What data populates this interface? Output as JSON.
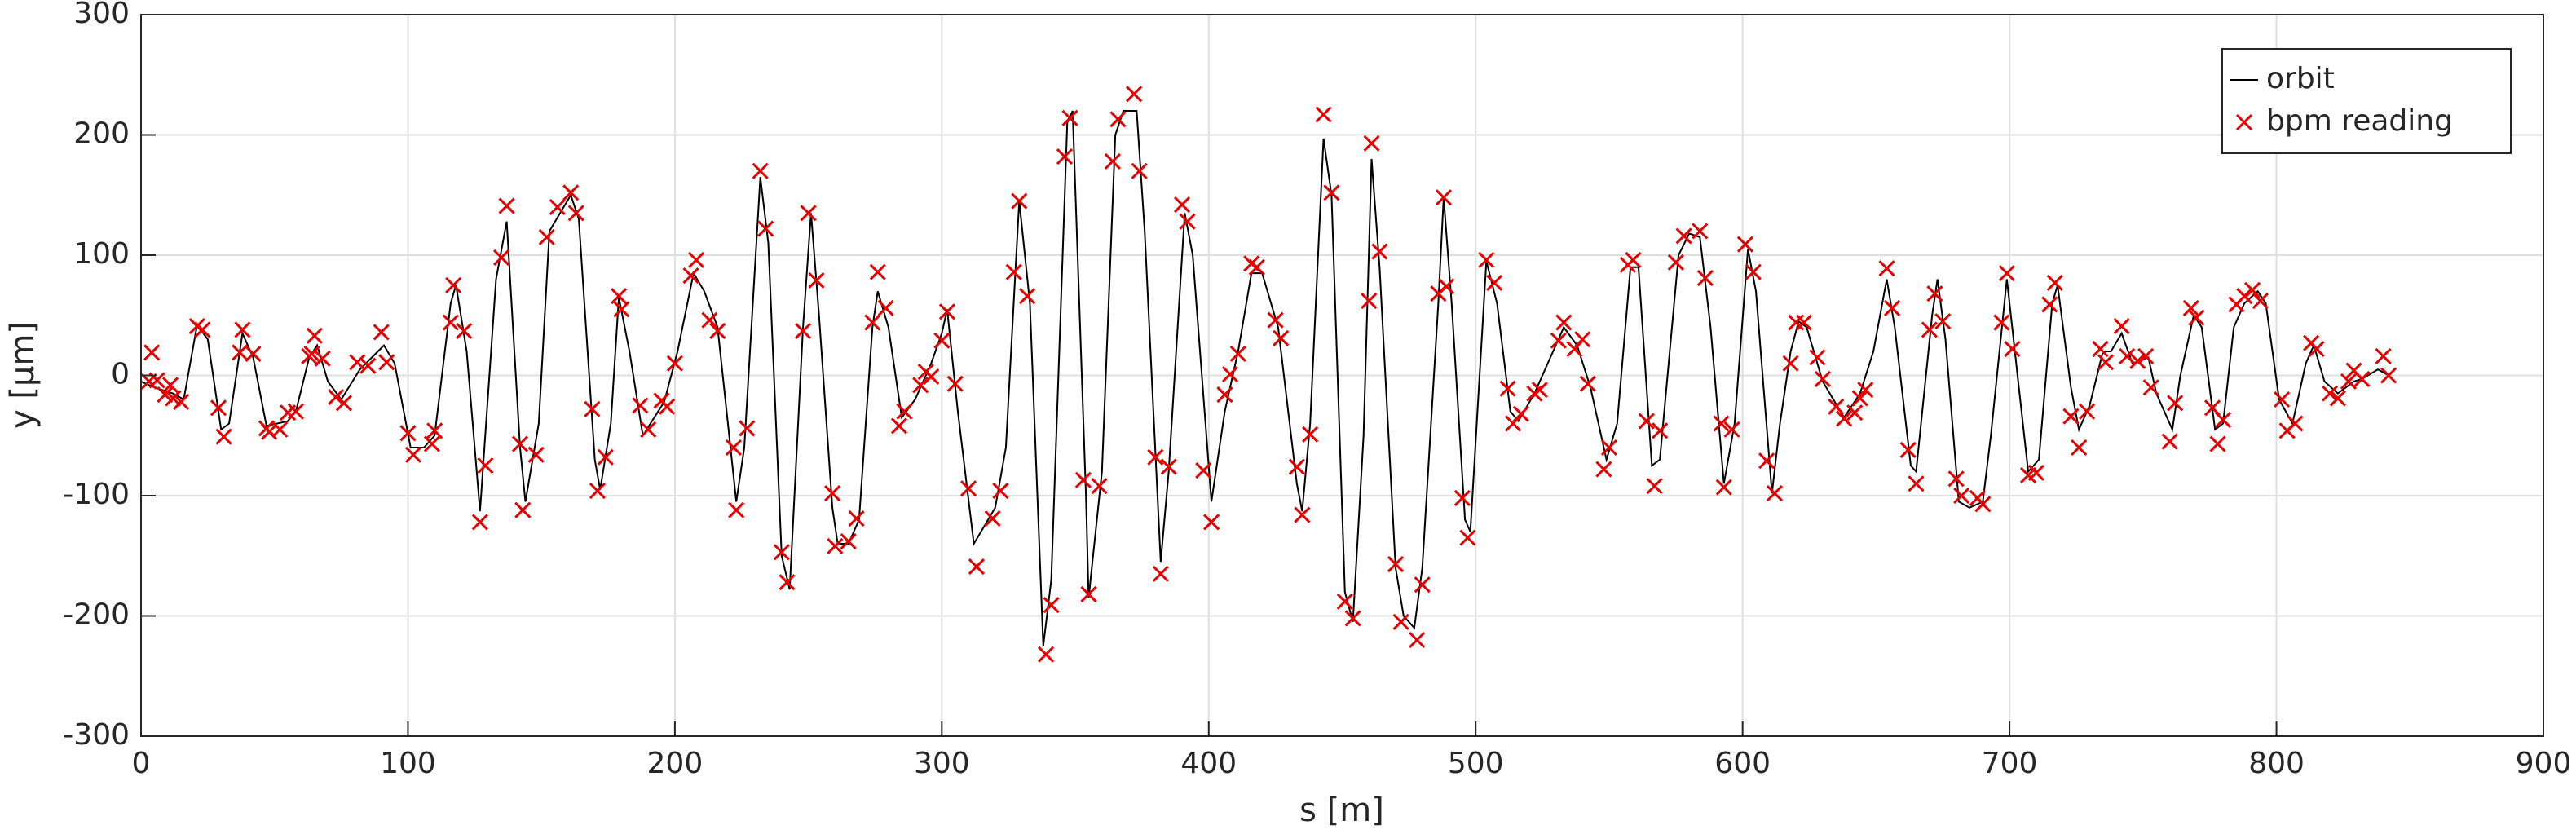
{
  "chart_data": {
    "type": "line",
    "xlabel": "s [m]",
    "ylabel": "y [μm]",
    "xlim": [
      0,
      900
    ],
    "ylim": [
      -300,
      300
    ],
    "xticks": [
      0,
      100,
      200,
      300,
      400,
      500,
      600,
      700,
      800,
      900
    ],
    "yticks": [
      -300,
      -200,
      -100,
      0,
      100,
      200,
      300
    ],
    "grid": true,
    "legend": "northeast",
    "series": [
      {
        "name": "orbit",
        "type": "line",
        "color": "#000000",
        "x": [
          0,
          5,
          12,
          16,
          21,
          25,
          30,
          33,
          38,
          42,
          47,
          55,
          58,
          63,
          66,
          70,
          75,
          82,
          91,
          95,
          101,
          106,
          110,
          116,
          118,
          122,
          127,
          133,
          137,
          142,
          144,
          149,
          153,
          161,
          164,
          170,
          172,
          176,
          179,
          183,
          188,
          196,
          201,
          207,
          211,
          216,
          223,
          226,
          232,
          235,
          240,
          243,
          248,
          251,
          254,
          259,
          261,
          265,
          269,
          274,
          276,
          280,
          285,
          290,
          296,
          300,
          302,
          306,
          312,
          320,
          324,
          329,
          333,
          338,
          341,
          347,
          349,
          354,
          355,
          360,
          365,
          368,
          373,
          376,
          382,
          385,
          391,
          394,
          401,
          406,
          411,
          416,
          420,
          426,
          433,
          435,
          438,
          443,
          446,
          451,
          454,
          458,
          461,
          464,
          470,
          473,
          477,
          480,
          486,
          488,
          491,
          496,
          498,
          504,
          508,
          513,
          516,
          522,
          528,
          533,
          538,
          543,
          549,
          553,
          558,
          561,
          566,
          569,
          576,
          580,
          584,
          588,
          593,
          597,
          602,
          605,
          611,
          614,
          618,
          621,
          624,
          630,
          638,
          644,
          649,
          654,
          657,
          663,
          665,
          671,
          673,
          676,
          681,
          685,
          690,
          693,
          699,
          702,
          707,
          711,
          716,
          718,
          723,
          726,
          730,
          735,
          738,
          742,
          746,
          752,
          755,
          761,
          764,
          769,
          772,
          777,
          780,
          784,
          788,
          793,
          796,
          801,
          806,
          811,
          814,
          818,
          823,
          829,
          832,
          838,
          842
        ],
        "values": [
          -5,
          -10,
          -15,
          -20,
          42,
          30,
          -45,
          -40,
          35,
          15,
          -42,
          -38,
          -30,
          15,
          25,
          -5,
          -20,
          5,
          25,
          10,
          -60,
          -60,
          -50,
          60,
          75,
          20,
          -113,
          80,
          128,
          -60,
          -105,
          -40,
          120,
          150,
          130,
          -70,
          -95,
          -40,
          65,
          20,
          -50,
          -22,
          20,
          85,
          70,
          40,
          -105,
          -60,
          165,
          110,
          -150,
          -178,
          40,
          135,
          50,
          -110,
          -140,
          -140,
          -120,
          40,
          70,
          40,
          -35,
          -20,
          10,
          35,
          55,
          -30,
          -140,
          -110,
          -60,
          145,
          60,
          -225,
          -170,
          210,
          220,
          -100,
          -185,
          -80,
          200,
          220,
          220,
          120,
          -155,
          -80,
          135,
          100,
          -105,
          -30,
          20,
          85,
          85,
          40,
          -90,
          -113,
          -40,
          197,
          150,
          -180,
          -205,
          -50,
          180,
          90,
          -160,
          -200,
          -210,
          -160,
          60,
          148,
          60,
          -120,
          -130,
          95,
          60,
          -30,
          -38,
          -15,
          15,
          40,
          25,
          -10,
          -70,
          -40,
          90,
          90,
          -75,
          -70,
          100,
          118,
          115,
          40,
          -90,
          -40,
          105,
          70,
          -98,
          -40,
          20,
          45,
          40,
          -5,
          -35,
          -15,
          20,
          80,
          40,
          -75,
          -80,
          50,
          80,
          30,
          -105,
          -110,
          -105,
          -50,
          80,
          20,
          -80,
          -70,
          60,
          75,
          -10,
          -45,
          -25,
          20,
          20,
          35,
          10,
          15,
          -15,
          -45,
          0,
          50,
          40,
          -45,
          -40,
          40,
          60,
          70,
          60,
          -20,
          -40,
          10,
          25,
          -5,
          -15,
          -5,
          -3,
          5,
          0
        ]
      },
      {
        "name": "bpm reading",
        "type": "scatter",
        "color": "#e60000",
        "x": [
          3,
          4,
          6,
          9,
          11,
          12,
          15,
          21,
          23,
          29,
          31,
          37,
          38,
          42,
          47,
          48,
          52,
          55,
          58,
          63,
          64,
          65,
          68,
          73,
          76,
          81,
          85,
          90,
          92,
          100,
          102,
          109,
          110,
          116,
          117,
          121,
          127,
          129,
          135,
          137,
          142,
          143,
          148,
          152,
          156,
          161,
          163,
          169,
          171,
          174,
          179,
          180,
          187,
          190,
          195,
          197,
          200,
          206,
          208,
          213,
          216,
          222,
          223,
          227,
          232,
          234,
          240,
          242,
          248,
          250,
          253,
          259,
          260,
          265,
          268,
          274,
          276,
          279,
          284,
          286,
          292,
          294,
          296,
          300,
          302,
          305,
          310,
          313,
          319,
          322,
          327,
          329,
          332,
          339,
          341,
          346,
          348,
          353,
          355,
          359,
          364,
          366,
          372,
          374,
          380,
          382,
          385,
          390,
          392,
          398,
          401,
          406,
          408,
          411,
          416,
          418,
          425,
          427,
          433,
          435,
          438,
          443,
          446,
          451,
          454,
          460,
          461,
          464,
          470,
          472,
          478,
          480,
          486,
          488,
          489,
          495,
          497,
          504,
          507,
          512,
          514,
          517,
          522,
          524,
          531,
          533,
          537,
          540,
          542,
          548,
          550,
          557,
          559,
          564,
          567,
          569,
          575,
          578,
          584,
          586,
          592,
          593,
          596,
          601,
          604,
          609,
          612,
          618,
          620,
          623,
          628,
          630,
          635,
          638,
          642,
          644,
          646,
          654,
          656,
          662,
          665,
          670,
          672,
          675,
          680,
          682,
          688,
          690,
          697,
          699,
          701,
          707,
          710,
          715,
          717,
          723,
          726,
          729,
          734,
          736,
          742,
          744,
          748,
          751,
          753,
          760,
          762,
          768,
          770,
          776,
          778,
          780,
          785,
          788,
          791,
          794,
          802,
          804,
          807,
          813,
          815,
          820,
          823,
          827,
          829,
          832,
          840,
          842
        ],
        "values": [
          -5,
          19,
          -4,
          -16,
          -8,
          -19,
          -22,
          41,
          38,
          -27,
          -51,
          19,
          38,
          18,
          -44,
          -47,
          -45,
          -31,
          -30,
          16,
          18,
          33,
          14,
          -18,
          -23,
          11,
          8,
          36,
          11,
          -48,
          -66,
          -57,
          -46,
          44,
          75,
          37,
          -122,
          -75,
          98,
          141,
          -57,
          -112,
          -66,
          115,
          140,
          152,
          135,
          -28,
          -96,
          -68,
          66,
          55,
          -25,
          -45,
          -21,
          -26,
          10,
          83,
          96,
          46,
          37,
          -60,
          -112,
          -44,
          170,
          122,
          -147,
          -172,
          37,
          135,
          79,
          -98,
          -142,
          -138,
          -119,
          44,
          86,
          56,
          -42,
          -30,
          -8,
          3,
          -1,
          29,
          53,
          -7,
          -94,
          -159,
          -119,
          -96,
          86,
          145,
          66,
          -232,
          -191,
          182,
          214,
          -87,
          -182,
          -92,
          178,
          213,
          234,
          170,
          -68,
          -165,
          -76,
          142,
          128,
          -79,
          -122,
          -16,
          1,
          18,
          93,
          90,
          46,
          31,
          -76,
          -116,
          -49,
          217,
          152,
          -188,
          -202,
          62,
          193,
          103,
          -157,
          -205,
          -220,
          -174,
          68,
          148,
          74,
          -102,
          -135,
          96,
          77,
          -11,
          -40,
          -32,
          -15,
          -12,
          29,
          44,
          22,
          30,
          -7,
          -78,
          -60,
          92,
          96,
          -38,
          -92,
          -46,
          94,
          116,
          120,
          81,
          -40,
          -93,
          -45,
          109,
          86,
          -71,
          -98,
          10,
          44,
          44,
          15,
          -3,
          -26,
          -36,
          -31,
          -19,
          -12,
          89,
          56,
          -62,
          -90,
          38,
          68,
          45,
          -86,
          -100,
          -102,
          -107,
          44,
          85,
          22,
          -83,
          -81,
          59,
          77,
          -34,
          -60,
          -30,
          22,
          11,
          41,
          16,
          12,
          16,
          -10,
          -55,
          -23,
          56,
          48,
          -27,
          -57,
          -37,
          59,
          66,
          71,
          62,
          -20,
          -46,
          -40,
          27,
          22,
          -15,
          -19,
          -5,
          4,
          -3,
          16,
          0
        ]
      }
    ]
  }
}
